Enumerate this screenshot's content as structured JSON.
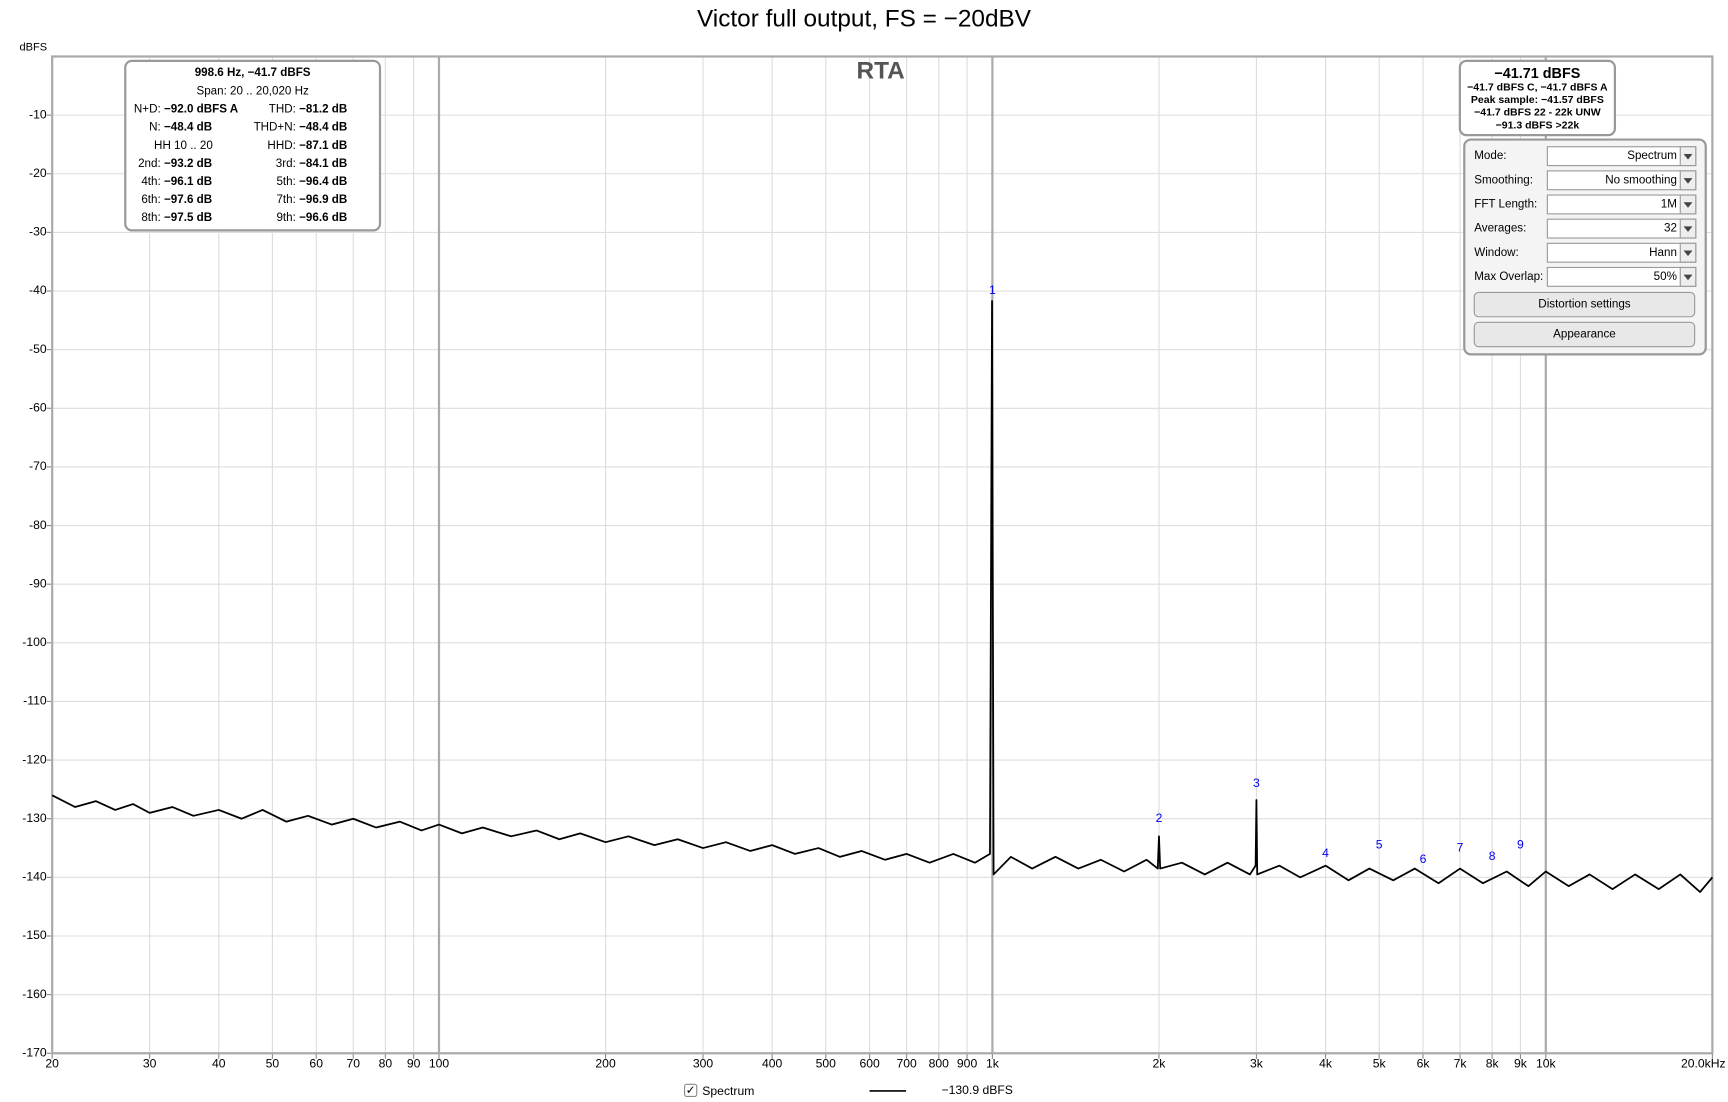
{
  "chart_data": {
    "type": "line",
    "title": "Victor full output, FS = −20dBV",
    "panel_title": "RTA",
    "y_label": "dBFS",
    "xscale": "log",
    "grid": true,
    "xlim": [
      20,
      20000
    ],
    "ylim": [
      -170,
      0
    ],
    "xticks": [
      20,
      30,
      40,
      50,
      60,
      70,
      80,
      90,
      100,
      200,
      300,
      400,
      500,
      600,
      700,
      800,
      900,
      {
        "value": 1000,
        "label": "1k"
      },
      {
        "value": 2000,
        "label": "2k"
      },
      {
        "value": 3000,
        "label": "3k"
      },
      {
        "value": 4000,
        "label": "4k"
      },
      {
        "value": 5000,
        "label": "5k"
      },
      {
        "value": 6000,
        "label": "6k"
      },
      {
        "value": 7000,
        "label": "7k"
      },
      {
        "value": 8000,
        "label": "8k"
      },
      {
        "value": 9000,
        "label": "9k"
      },
      {
        "value": 10000,
        "label": "10k"
      },
      {
        "value": 20000,
        "label": "20.0kHz"
      }
    ],
    "yticks": [
      -170,
      -160,
      -150,
      -140,
      -130,
      -120,
      -110,
      -100,
      -90,
      -80,
      -70,
      -60,
      -50,
      -40,
      -30,
      -20,
      -10
    ],
    "x": [
      20,
      22,
      24,
      26,
      28,
      30,
      33,
      36,
      40,
      44,
      48,
      53,
      58,
      64,
      70,
      77,
      85,
      93,
      100,
      110,
      120,
      135,
      150,
      165,
      180,
      200,
      220,
      245,
      270,
      300,
      330,
      365,
      400,
      440,
      485,
      530,
      580,
      640,
      700,
      770,
      850,
      930,
      990,
      998.6,
      1005,
      1080,
      1180,
      1300,
      1430,
      1570,
      1730,
      1900,
      1990,
      2000,
      2010,
      2200,
      2420,
      2660,
      2920,
      2990,
      3000,
      3010,
      3300,
      3600,
      4000,
      4400,
      4800,
      5300,
      5800,
      6400,
      7000,
      7700,
      8500,
      9300,
      10000,
      11000,
      12000,
      13200,
      14500,
      16000,
      17500,
      19000,
      20000
    ],
    "series": [
      {
        "name": "Spectrum",
        "color": "#000000",
        "values": [
          -126,
          -128,
          -127,
          -128.5,
          -127.5,
          -129,
          -128,
          -129.5,
          -128.5,
          -130,
          -128.5,
          -130.5,
          -129.5,
          -131,
          -130,
          -131.5,
          -130.5,
          -132,
          -131,
          -132.5,
          -131.5,
          -133,
          -132,
          -133.5,
          -132.5,
          -134,
          -133,
          -134.5,
          -133.5,
          -135,
          -134,
          -135.5,
          -134.5,
          -136,
          -135,
          -136.5,
          -135.5,
          -137,
          -136,
          -137.5,
          -136,
          -137.5,
          -136,
          -41.7,
          -139.5,
          -136.5,
          -138.5,
          -136.5,
          -138.5,
          -137,
          -139,
          -137,
          -138.5,
          -133,
          -138.5,
          -137.5,
          -139.5,
          -137.5,
          -139.5,
          -138,
          -126.8,
          -139.5,
          -138,
          -140,
          -138,
          -140.5,
          -138.5,
          -140.5,
          -138.5,
          -141,
          -138.5,
          -141,
          -139,
          -141.5,
          -139,
          -141.5,
          -139.5,
          -142,
          -139.5,
          -142,
          -139.5,
          -142.5,
          -140
        ]
      }
    ],
    "markers": [
      {
        "label": "1",
        "x": 1000,
        "y": -40
      },
      {
        "label": "2",
        "x": 2000,
        "y": -130
      },
      {
        "label": "3",
        "x": 3000,
        "y": -124
      },
      {
        "label": "4",
        "x": 4000,
        "y": -136
      },
      {
        "label": "5",
        "x": 5000,
        "y": -134.5
      },
      {
        "label": "6",
        "x": 6000,
        "y": -137
      },
      {
        "label": "7",
        "x": 7000,
        "y": -135
      },
      {
        "label": "8",
        "x": 8000,
        "y": -136.5
      },
      {
        "label": "9",
        "x": 9000,
        "y": -134.5
      }
    ],
    "marker_color": "#0000ee",
    "legend_readout": "−130.9 dBFS"
  },
  "info_box": {
    "head": [
      "998.6 Hz, −41.7 dBFS",
      "Span: 20 .. 20,020 Hz"
    ],
    "rows": [
      [
        "N+D:",
        "−92.0 dBFS A",
        "THD:",
        "−81.2 dB"
      ],
      [
        "N:",
        "−48.4 dB",
        "THD+N:",
        "−48.4 dB"
      ],
      [
        "HH 10 .. 20",
        "HHD:",
        "−87.1 dB"
      ],
      [
        "2nd:",
        "−93.2 dB",
        "3rd:",
        "−84.1 dB"
      ],
      [
        "4th:",
        "−96.1 dB",
        "5th:",
        "−96.4 dB"
      ],
      [
        "6th:",
        "−97.6 dB",
        "7th:",
        "−96.9 dB"
      ],
      [
        "8th:",
        "−97.5 dB",
        "9th:",
        "−96.6 dB"
      ]
    ]
  },
  "level_box": {
    "main": "−41.71 dBFS",
    "lines": [
      "−41.7 dBFS C, −41.7 dBFS A",
      "Peak sample: −41.57 dBFS",
      "−41.7 dBFS 22 - 22k UNW",
      "−91.3 dBFS >22k"
    ]
  },
  "controls": {
    "rows": [
      {
        "label": "Mode:",
        "value": "Spectrum"
      },
      {
        "label": "Smoothing:",
        "value": "No  smoothing"
      },
      {
        "label": "FFT Length:",
        "value": "1M"
      },
      {
        "label": "Averages:",
        "value": "32"
      },
      {
        "label": "Window:",
        "value": "Hann"
      },
      {
        "label": "Max Overlap:",
        "value": "50%"
      }
    ],
    "buttons": [
      "Distortion settings",
      "Appearance"
    ]
  }
}
